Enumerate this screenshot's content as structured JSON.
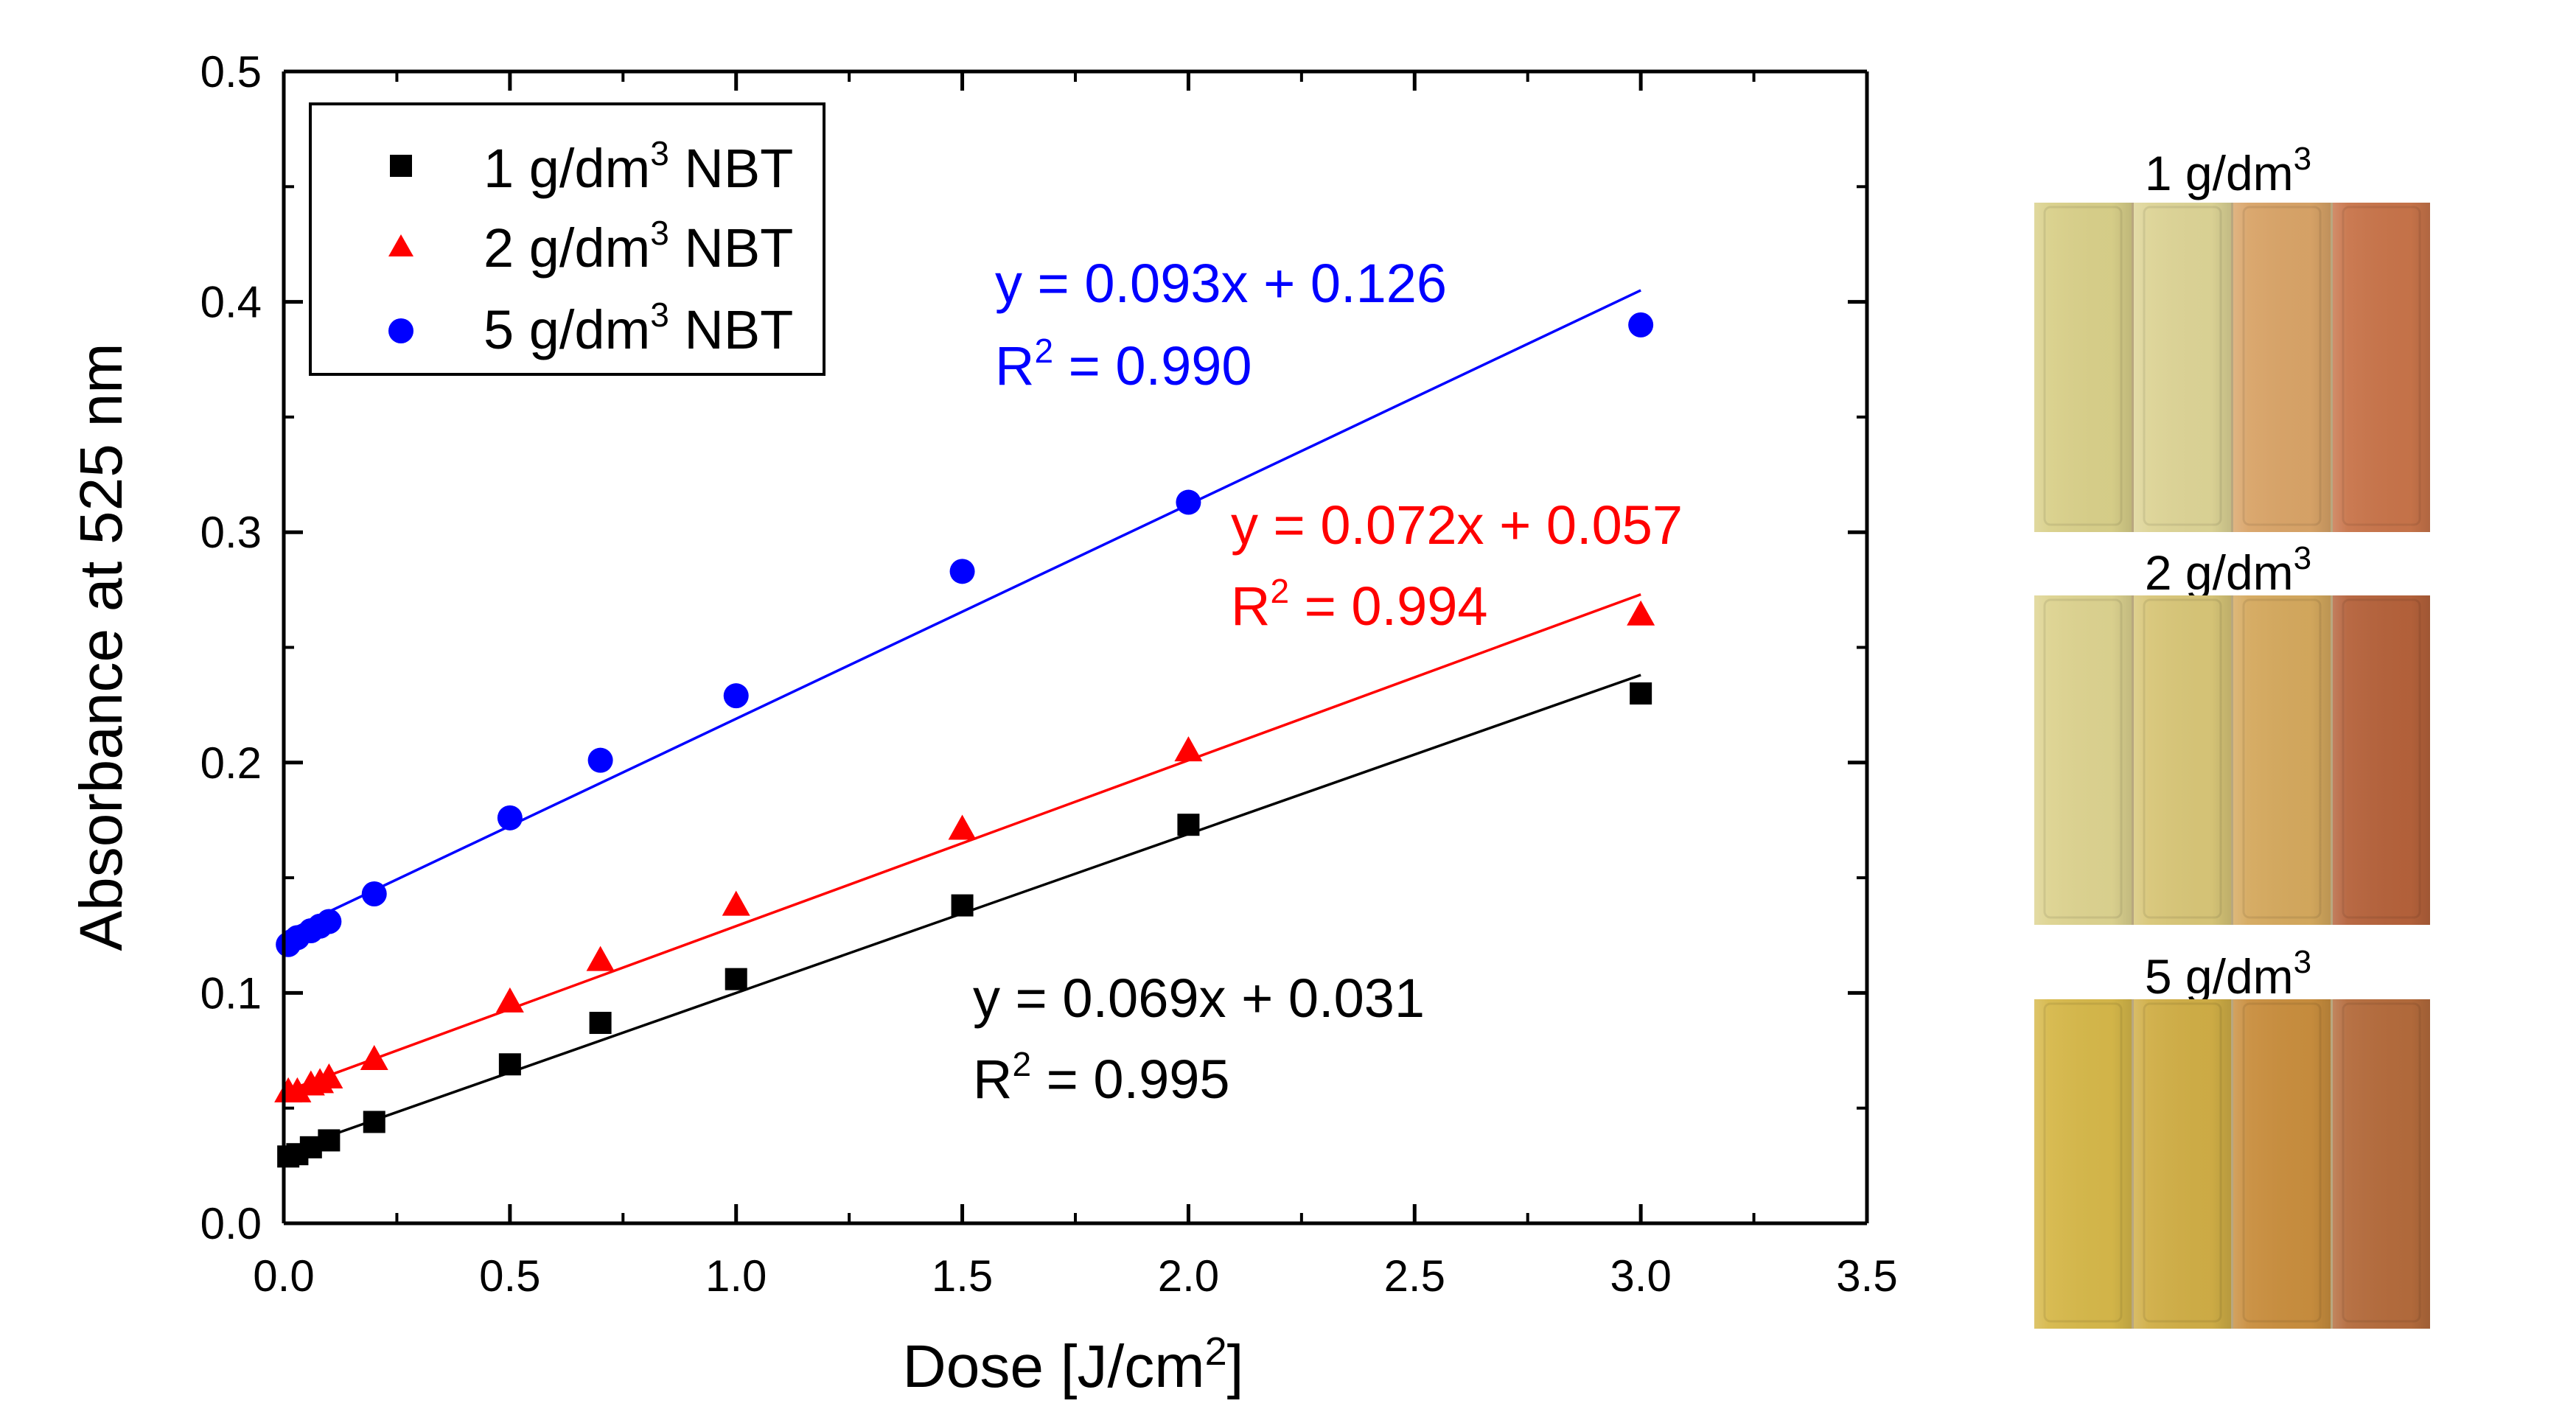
{
  "chart_data": {
    "type": "scatter",
    "xlabel": "Dose [J/cm",
    "xlabel_sup": "2",
    "xlabel_suffix": "]",
    "ylabel": "Absorbance at 525 nm",
    "xlim": [
      0,
      3.5
    ],
    "ylim": [
      0,
      0.5
    ],
    "xticks": [
      "0.0",
      "0.5",
      "1.0",
      "1.5",
      "2.0",
      "2.5",
      "3.0",
      "3.5"
    ],
    "yticks": [
      "0.0",
      "0.1",
      "0.2",
      "0.3",
      "0.4",
      "0.5"
    ],
    "grid": false,
    "legend_position": "top-left",
    "series": [
      {
        "name": "1 g/dm",
        "name_sup": "3",
        "name_suffix": " NBT",
        "color": "#000000",
        "marker": "square",
        "x": [
          0.01,
          0.03,
          0.06,
          0.1,
          0.2,
          0.5,
          0.7,
          1.0,
          1.5,
          2.0,
          3.0
        ],
        "y": [
          0.029,
          0.03,
          0.033,
          0.036,
          0.044,
          0.069,
          0.087,
          0.106,
          0.138,
          0.173,
          0.23
        ],
        "fit": {
          "slope": 0.069,
          "intercept": 0.031,
          "eq": "y = 0.069x + 0.031",
          "r2_prefix": "R",
          "r2_sup": "2",
          "r2_suffix": " = 0.995"
        }
      },
      {
        "name": "2 g/dm",
        "name_sup": "3",
        "name_suffix": " NBT",
        "color": "#ff0000",
        "marker": "triangle",
        "x": [
          0.01,
          0.03,
          0.06,
          0.08,
          0.1,
          0.2,
          0.5,
          0.7,
          1.0,
          1.5,
          2.0,
          3.0
        ],
        "y": [
          0.057,
          0.057,
          0.06,
          0.061,
          0.063,
          0.071,
          0.096,
          0.114,
          0.138,
          0.171,
          0.205,
          0.264
        ],
        "fit": {
          "slope": 0.072,
          "intercept": 0.057,
          "eq": "y = 0.072x + 0.057",
          "r2_prefix": "R",
          "r2_sup": "2",
          "r2_suffix": " = 0.994"
        }
      },
      {
        "name": "5 g/dm",
        "name_sup": "3",
        "name_suffix": " NBT",
        "color": "#0000ff",
        "marker": "circle",
        "x": [
          0.01,
          0.03,
          0.06,
          0.08,
          0.1,
          0.2,
          0.5,
          0.7,
          1.0,
          1.5,
          2.0,
          3.0
        ],
        "y": [
          0.121,
          0.124,
          0.127,
          0.129,
          0.131,
          0.143,
          0.176,
          0.201,
          0.229,
          0.283,
          0.313,
          0.39
        ],
        "fit": {
          "slope": 0.093,
          "intercept": 0.126,
          "eq": "y = 0.093x + 0.126",
          "r2_prefix": "R",
          "r2_sup": "2",
          "r2_suffix": " = 0.990"
        }
      }
    ]
  },
  "photos": [
    {
      "label": "1 g/dm",
      "label_sup": "3",
      "vial_colors": [
        "#d9d08a",
        "#ddd496",
        "#d9a468",
        "#c8744a"
      ]
    },
    {
      "label": "2 g/dm",
      "label_sup": "3",
      "vial_colors": [
        "#ddd390",
        "#d8c678",
        "#d5a95e",
        "#b5623b"
      ]
    },
    {
      "label": "5 g/dm",
      "label_sup": "3",
      "vial_colors": [
        "#d6b84a",
        "#d0ae46",
        "#c98e3e",
        "#b46b3c"
      ]
    }
  ]
}
